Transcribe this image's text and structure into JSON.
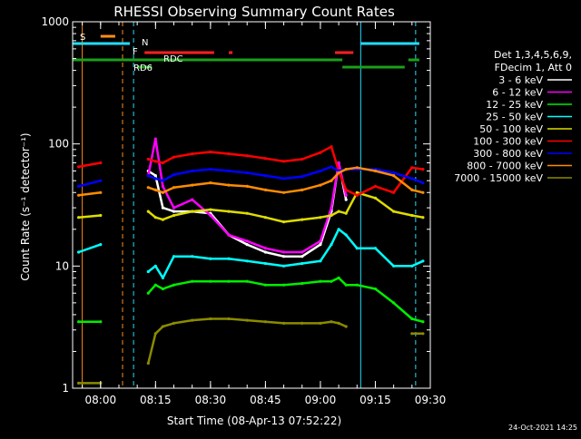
{
  "title": "RHESSI Observing Summary Count Rates",
  "ylabel": "Count Rate (s⁻¹ detector⁻¹)",
  "xlabel": "Start Time (08-Apr-13 07:52:22)",
  "footer_date": "24-Oct-2021 14:25",
  "legend_header": [
    "Det 1,3,4,5,6,9,",
    "FDecim 1, Att 0"
  ],
  "flags": [
    {
      "label": "S",
      "color": "#ff8c1a"
    },
    {
      "label": "N",
      "color": "#22ddff"
    },
    {
      "label": "F",
      "color": "#ff2020"
    },
    {
      "label": "RDC",
      "color": "#1aa01a"
    },
    {
      "label": "RD6",
      "color": "#1aa01a"
    }
  ],
  "chart_data": {
    "type": "line",
    "title": "RHESSI Observing Summary Count Rates",
    "xlabel": "Start Time (08-Apr-13 07:52:22)",
    "ylabel": "Count Rate (s⁻¹ detector⁻¹)",
    "yscale": "log",
    "ylim": [
      1,
      1000
    ],
    "xlim": [
      "07:52:22",
      "09:30:00"
    ],
    "x_ticks": [
      "08:00",
      "08:15",
      "08:30",
      "08:45",
      "09:00",
      "09:15",
      "09:30"
    ],
    "y_ticks": [
      1,
      10,
      100,
      1000
    ],
    "x": [
      "07:54",
      "08:00",
      "08:05",
      "08:10",
      "08:13",
      "08:15",
      "08:17",
      "08:20",
      "08:25",
      "08:30",
      "08:35",
      "08:40",
      "08:45",
      "08:50",
      "08:55",
      "09:00",
      "09:03",
      "09:05",
      "09:07",
      "09:10",
      "09:15",
      "09:20",
      "09:25",
      "09:28"
    ],
    "series": [
      {
        "name": "3 - 6 keV",
        "color": "#ffffff",
        "values": [
          null,
          null,
          null,
          null,
          60,
          55,
          30,
          28,
          28,
          27,
          18,
          15,
          13,
          12,
          12,
          15,
          28,
          70,
          35,
          null,
          null,
          null,
          null,
          null
        ]
      },
      {
        "name": "6 - 12 keV",
        "color": "#ff00ff",
        "values": [
          null,
          null,
          null,
          null,
          55,
          110,
          45,
          30,
          35,
          26,
          18,
          16,
          14,
          13,
          13,
          16,
          30,
          70,
          38,
          null,
          null,
          null,
          null,
          null
        ]
      },
      {
        "name": "12 - 25 keV",
        "color": "#00ee00",
        "values": [
          3.5,
          3.5,
          null,
          null,
          6,
          7,
          6.5,
          7,
          7.5,
          7.5,
          7.5,
          7.5,
          7,
          7,
          7.2,
          7.5,
          7.5,
          8,
          7,
          7,
          6.5,
          5,
          3.7,
          3.5
        ]
      },
      {
        "name": "25 - 50 keV",
        "color": "#00ffff",
        "values": [
          13,
          15,
          null,
          null,
          9,
          10,
          8,
          12,
          12,
          11.5,
          11.5,
          11,
          10.5,
          10,
          10.5,
          11,
          15,
          20,
          18,
          14,
          14,
          10,
          10,
          11
        ]
      },
      {
        "name": "50 - 100 keV",
        "color": "#dddd00",
        "values": [
          25,
          26,
          null,
          null,
          28,
          25,
          24,
          26,
          28,
          29,
          28,
          27,
          25,
          23,
          24,
          25,
          26,
          28,
          27,
          40,
          36,
          28,
          26,
          25
        ]
      },
      {
        "name": "100 - 300 keV",
        "color": "#ff0000",
        "values": [
          65,
          70,
          null,
          null,
          75,
          72,
          70,
          78,
          83,
          86,
          83,
          80,
          76,
          72,
          75,
          85,
          95,
          60,
          42,
          38,
          45,
          40,
          64,
          62
        ]
      },
      {
        "name": "300 - 800 keV",
        "color": "#0000ff",
        "values": [
          45,
          50,
          null,
          null,
          55,
          52,
          50,
          56,
          60,
          62,
          60,
          58,
          55,
          52,
          54,
          60,
          65,
          60,
          62,
          62,
          62,
          58,
          52,
          48
        ]
      },
      {
        "name": "800 - 7000 keV",
        "color": "#ff8c00",
        "values": [
          38,
          40,
          null,
          null,
          44,
          42,
          40,
          44,
          46,
          48,
          46,
          45,
          42,
          40,
          42,
          46,
          50,
          58,
          62,
          64,
          60,
          55,
          42,
          40
        ]
      },
      {
        "name": "7000 - 15000 keV",
        "color": "#8b8b00",
        "values": [
          1.1,
          1.1,
          null,
          null,
          1.6,
          2.8,
          3.2,
          3.4,
          3.6,
          3.7,
          3.7,
          3.6,
          3.5,
          3.4,
          3.4,
          3.4,
          3.5,
          3.4,
          3.2,
          null,
          null,
          null,
          2.8,
          2.8
        ]
      }
    ],
    "grid": false,
    "legend_position": "right"
  }
}
